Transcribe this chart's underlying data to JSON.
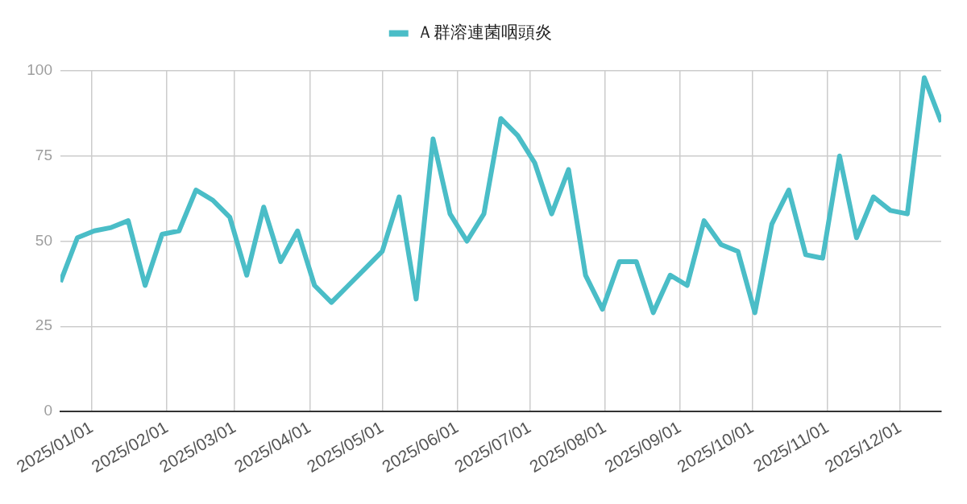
{
  "chart_data": {
    "type": "line",
    "x": [
      "2024-12-19",
      "2024-12-26",
      "2025-01-02",
      "2025-01-09",
      "2025-01-16",
      "2025-01-23",
      "2025-01-30",
      "2025-02-06",
      "2025-02-13",
      "2025-02-20",
      "2025-02-27",
      "2025-03-06",
      "2025-03-13",
      "2025-03-20",
      "2025-03-27",
      "2025-04-03",
      "2025-04-10",
      "2025-04-17",
      "2025-04-24",
      "2025-05-01",
      "2025-05-08",
      "2025-05-15",
      "2025-05-22",
      "2025-05-29",
      "2025-06-05",
      "2025-06-12",
      "2025-06-19",
      "2025-06-26",
      "2025-07-03",
      "2025-07-10",
      "2025-07-17",
      "2025-07-24",
      "2025-07-31",
      "2025-08-07",
      "2025-08-14",
      "2025-08-21",
      "2025-08-28",
      "2025-09-04",
      "2025-09-11",
      "2025-09-18",
      "2025-09-25",
      "2025-10-02",
      "2025-10-09",
      "2025-10-16",
      "2025-10-23",
      "2025-10-30",
      "2025-11-06",
      "2025-11-13",
      "2025-11-20",
      "2025-11-27",
      "2025-12-04",
      "2025-12-11",
      "2025-12-18"
    ],
    "series": [
      {
        "name": "Ａ群溶連菌咽頭炎",
        "color": "#4abdc7",
        "values": [
          38,
          51,
          53,
          54,
          56,
          37,
          52,
          53,
          65,
          62,
          57,
          40,
          60,
          44,
          53,
          37,
          32,
          37,
          42,
          47,
          63,
          33,
          80,
          58,
          50,
          58,
          86,
          81,
          73,
          58,
          71,
          40,
          30,
          44,
          44,
          29,
          40,
          37,
          56,
          49,
          47,
          29,
          55,
          65,
          46,
          45,
          75,
          51,
          63,
          59,
          58,
          98,
          85
        ]
      }
    ],
    "xlim": [
      "2024-12-19",
      "2025-12-18"
    ],
    "xticks": [
      {
        "value": "2025-01-01",
        "label": "2025/01/01"
      },
      {
        "value": "2025-02-01",
        "label": "2025/02/01"
      },
      {
        "value": "2025-03-01",
        "label": "2025/03/01"
      },
      {
        "value": "2025-04-01",
        "label": "2025/04/01"
      },
      {
        "value": "2025-05-01",
        "label": "2025/05/01"
      },
      {
        "value": "2025-06-01",
        "label": "2025/06/01"
      },
      {
        "value": "2025-07-01",
        "label": "2025/07/01"
      },
      {
        "value": "2025-08-01",
        "label": "2025/08/01"
      },
      {
        "value": "2025-09-01",
        "label": "2025/09/01"
      },
      {
        "value": "2025-10-01",
        "label": "2025/10/01"
      },
      {
        "value": "2025-11-01",
        "label": "2025/11/01"
      },
      {
        "value": "2025-12-01",
        "label": "2025/12/01"
      }
    ],
    "ylim": [
      0,
      100
    ],
    "yticks": [
      0,
      25,
      50,
      75,
      100
    ],
    "grid": true,
    "legend": "top"
  }
}
